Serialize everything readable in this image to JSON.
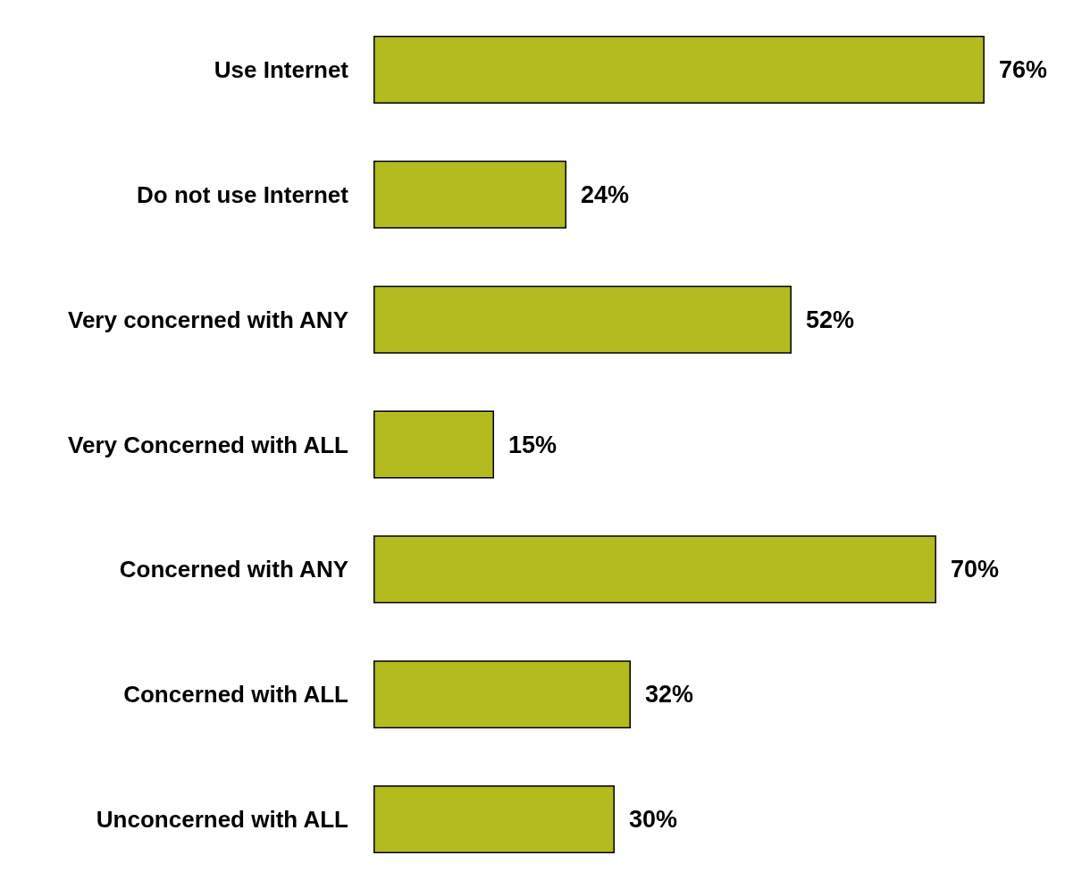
{
  "chart_data": {
    "type": "bar",
    "orientation": "horizontal",
    "categories": [
      "Use Internet",
      "Do not use Internet",
      "Very concerned with ANY",
      "Very Concerned with ALL",
      "Concerned with ANY",
      "Concerned with ALL",
      "Unconcerned with ALL"
    ],
    "values": [
      76,
      24,
      52,
      15,
      70,
      32,
      30
    ],
    "value_labels": [
      "76%",
      "24%",
      "52%",
      "15%",
      "70%",
      "32%",
      "30%"
    ],
    "color": "#b3bb1f"
  }
}
